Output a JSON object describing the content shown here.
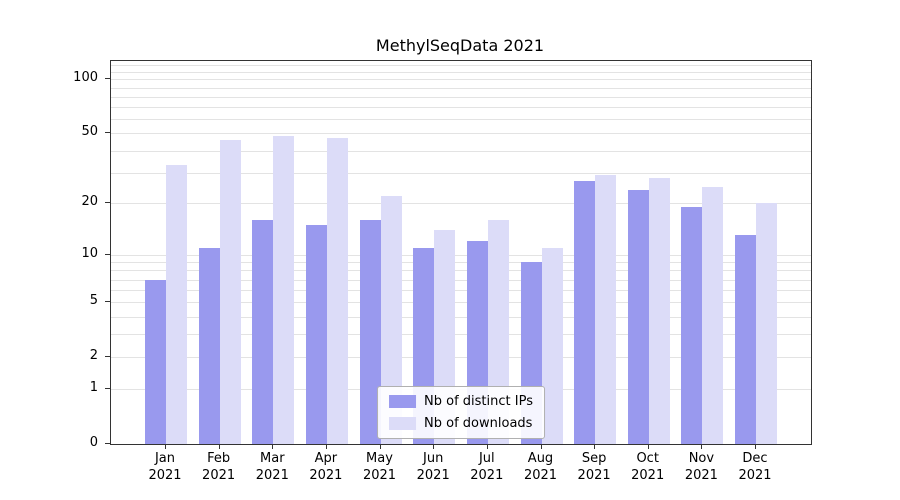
{
  "title": "MethylSeqData 2021",
  "chart_data": {
    "type": "bar",
    "title": "MethylSeqData 2021",
    "categories": [
      "Jan",
      "Feb",
      "Mar",
      "Apr",
      "May",
      "Jun",
      "Jul",
      "Aug",
      "Sep",
      "Oct",
      "Nov",
      "Dec"
    ],
    "year_label": "2021",
    "series": [
      {
        "name": "Nb of distinct IPs",
        "color": "#9999ee",
        "values": [
          7,
          11,
          16,
          15,
          16,
          11,
          12,
          9,
          27,
          24,
          19,
          13
        ]
      },
      {
        "name": "Nb of downloads",
        "color": "#dcdcf8",
        "values": [
          33,
          46,
          48,
          47,
          22,
          14,
          16,
          11,
          29,
          28,
          25,
          20
        ]
      }
    ],
    "xlabel": "",
    "ylabel": "",
    "yscale": "log1p",
    "yticks": [
      0,
      1,
      2,
      5,
      10,
      20,
      50,
      100
    ],
    "ylim": [
      0,
      126
    ],
    "grid": "horizontal-minor-log",
    "legend_position": "lower center"
  }
}
